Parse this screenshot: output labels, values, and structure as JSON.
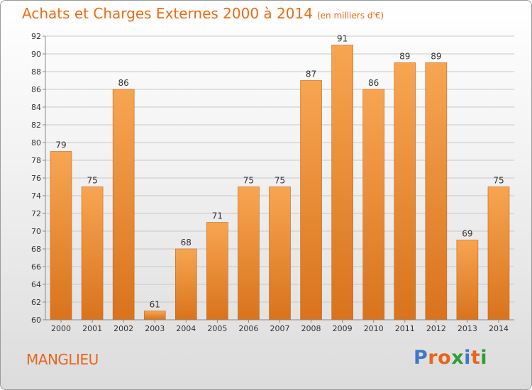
{
  "title": "Achats et Charges Externes 2000 à 2014",
  "unit": "(en milliers d'€)",
  "location": "MANGLIEU",
  "logo": {
    "text": "Proxiti",
    "letters": [
      {
        "ch": "P",
        "color": "#3f78c8"
      },
      {
        "ch": "r",
        "color": "#e8661c"
      },
      {
        "ch": "o",
        "color": "#e8661c"
      },
      {
        "ch": "x",
        "color": "#2f9e3a"
      },
      {
        "ch": "i",
        "color": "#3f78c8"
      },
      {
        "ch": "t",
        "color": "#e8661c"
      },
      {
        "ch": "i",
        "color": "#2f9e3a"
      }
    ]
  },
  "colors": {
    "title": "#f06a12",
    "bar_top": "#f7a552",
    "bar_bottom": "#d9731c",
    "bar_edge": "#c86414",
    "grid": "#c8c8c8",
    "axis_text": "#333333"
  },
  "chart_data": {
    "type": "bar",
    "categories": [
      "2000",
      "2001",
      "2002",
      "2003",
      "2004",
      "2005",
      "2006",
      "2007",
      "2008",
      "2009",
      "2010",
      "2011",
      "2012",
      "2013",
      "2014"
    ],
    "values": [
      79,
      75,
      86,
      61,
      68,
      71,
      75,
      75,
      87,
      91,
      86,
      89,
      89,
      69,
      75
    ],
    "title": "Achats et Charges Externes 2000 à 2014",
    "xlabel": "",
    "ylabel": "",
    "ylim": [
      60,
      92
    ],
    "yticks": [
      60,
      62,
      64,
      66,
      68,
      70,
      72,
      74,
      76,
      78,
      80,
      82,
      84,
      86,
      88,
      90,
      92
    ],
    "grid": true,
    "data_labels": true
  }
}
